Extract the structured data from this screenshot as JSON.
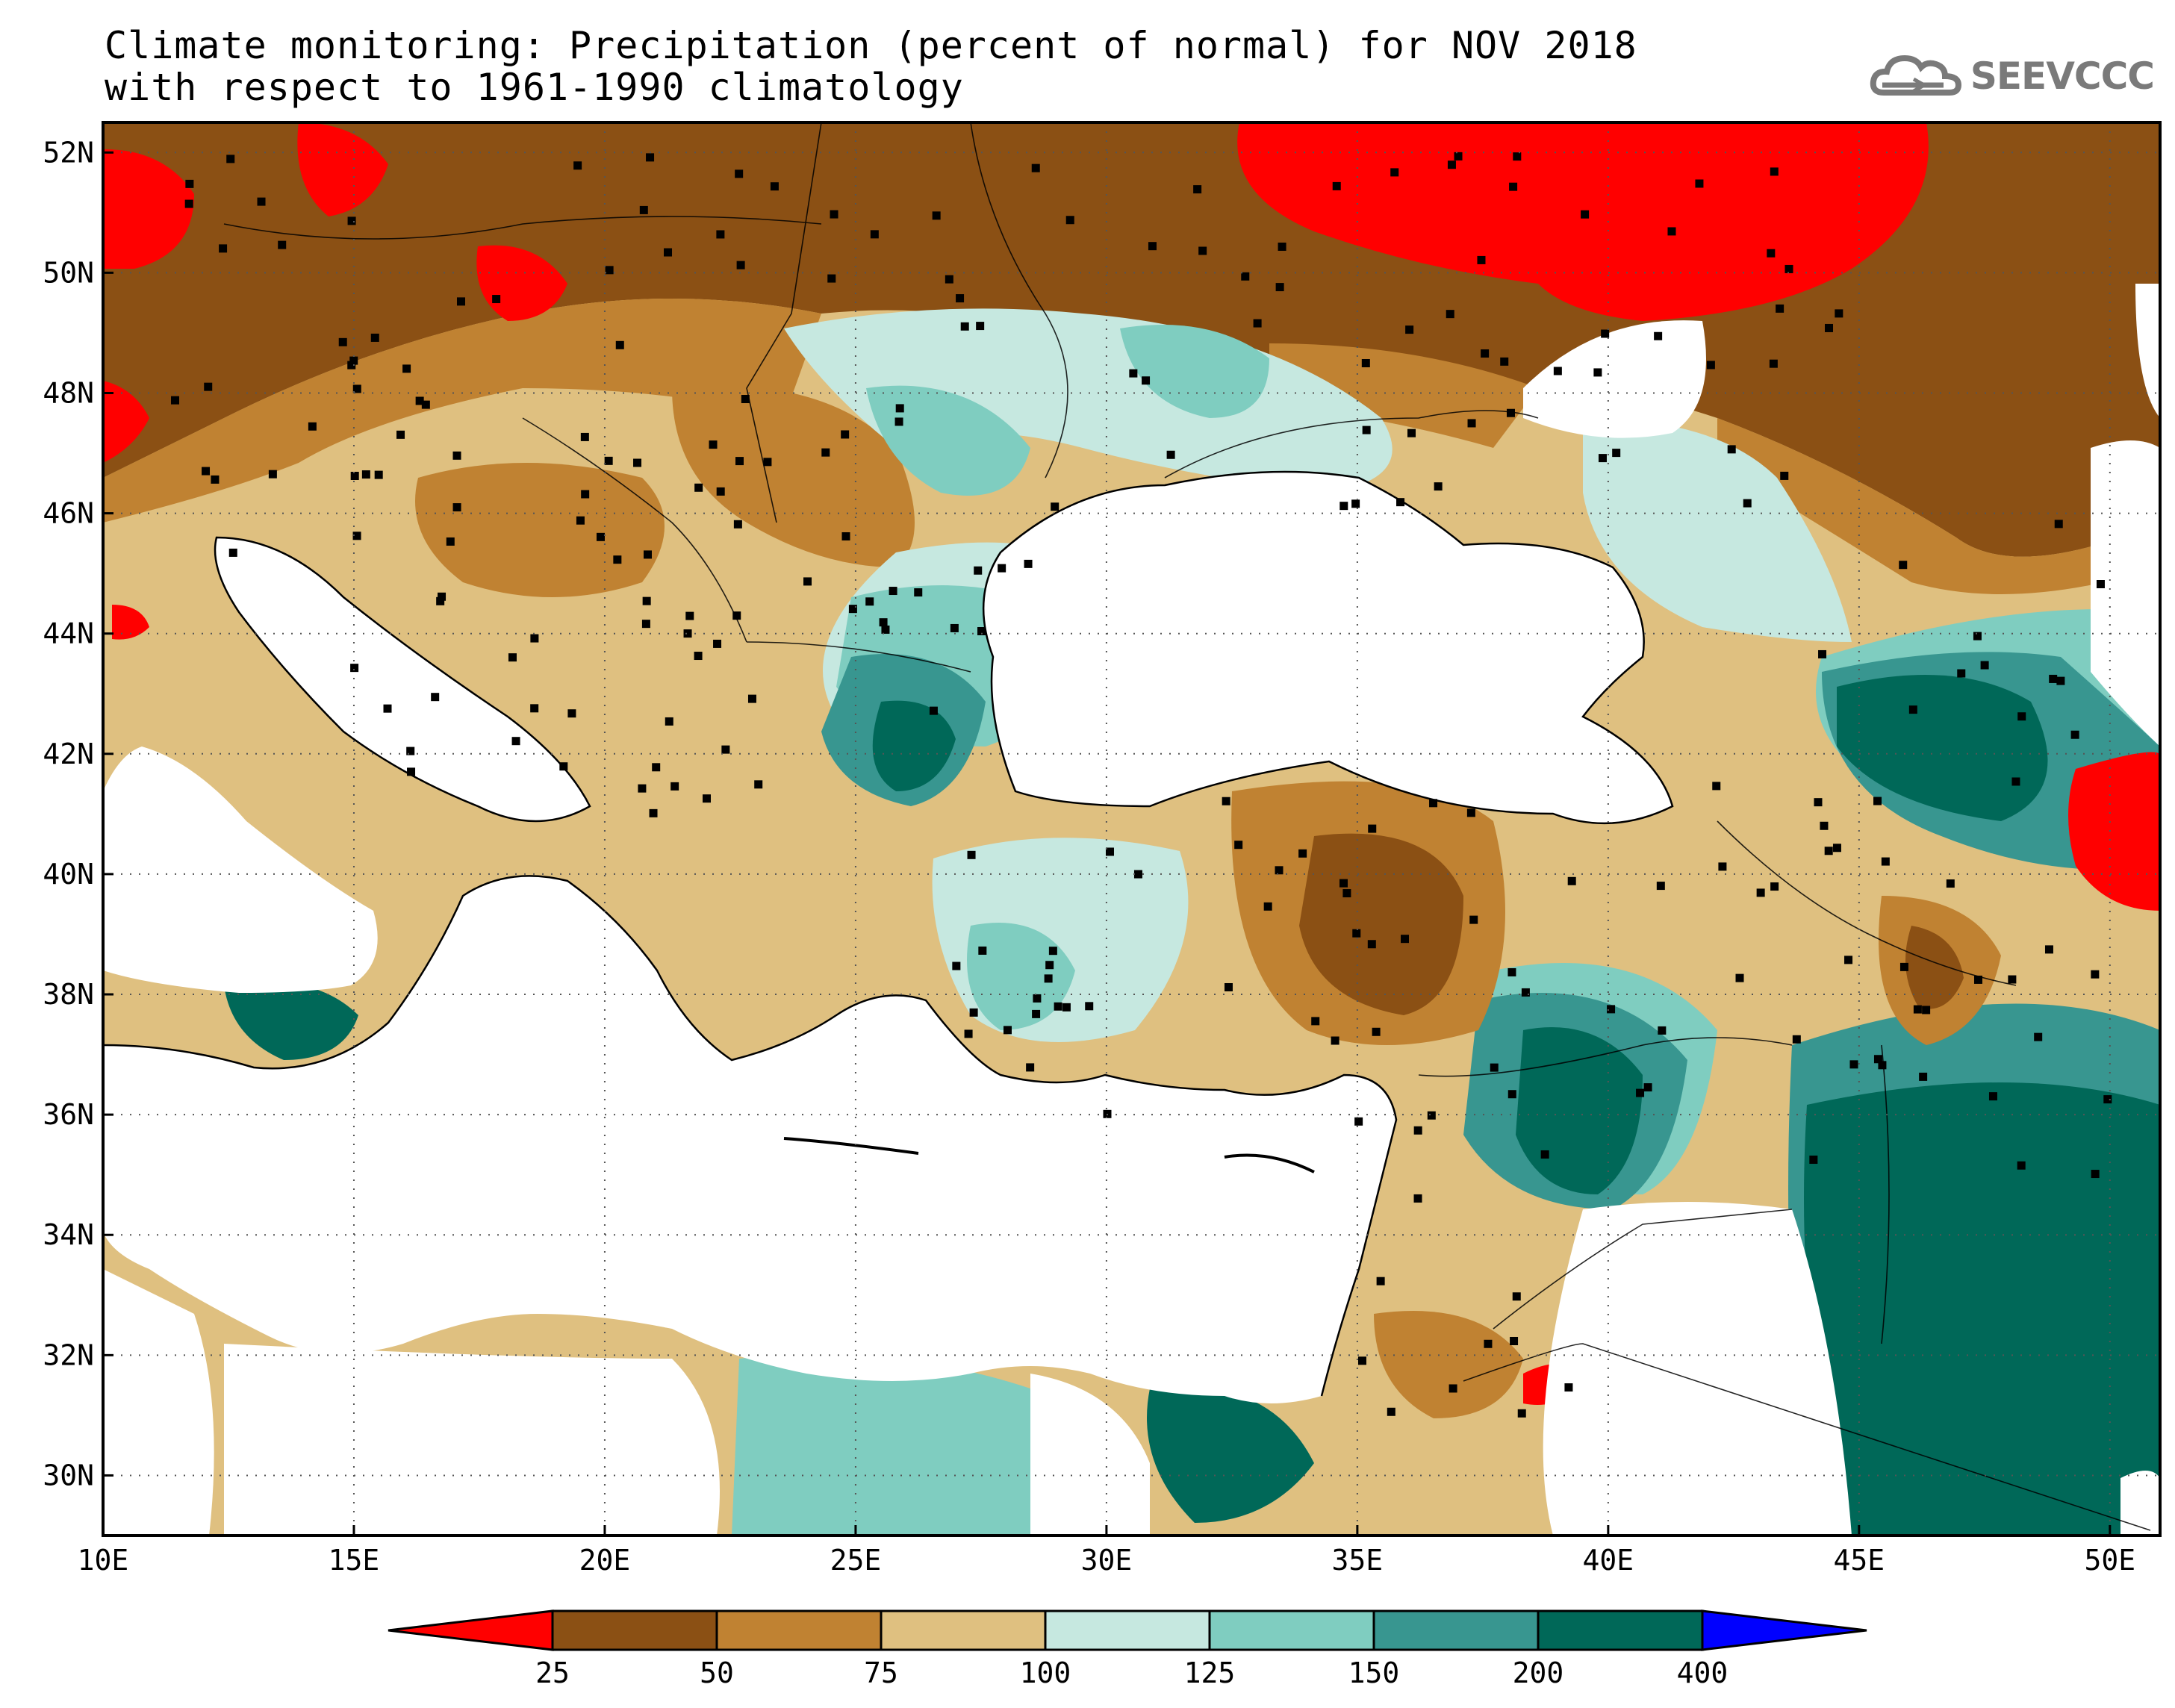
{
  "title": {
    "line1": "Climate monitoring: Precipitation (percent of normal) for NOV 2018",
    "line2": "with respect to 1961-1990 climatology"
  },
  "logo": {
    "icon": "cloud-icon",
    "text": "SEEVCCC",
    "color": "#7a7a7a"
  },
  "map": {
    "lon_range": [
      10,
      51
    ],
    "lat_range": [
      29,
      52.5
    ],
    "x_ticks": [
      "10E",
      "15E",
      "20E",
      "25E",
      "30E",
      "35E",
      "40E",
      "45E",
      "50E"
    ],
    "x_tick_values": [
      10,
      15,
      20,
      25,
      30,
      35,
      40,
      45,
      50
    ],
    "y_ticks": [
      "30N",
      "32N",
      "34N",
      "36N",
      "38N",
      "40N",
      "42N",
      "44N",
      "46N",
      "48N",
      "50N",
      "52N"
    ],
    "y_tick_values": [
      30,
      32,
      34,
      36,
      38,
      40,
      42,
      44,
      46,
      48,
      50,
      52
    ],
    "grid": "dotted",
    "colors": {
      "sea": "#ffffff",
      "coast": "#000000"
    }
  },
  "colorbar": {
    "labels": [
      "25",
      "50",
      "75",
      "100",
      "125",
      "150",
      "200",
      "400"
    ],
    "colors": [
      "#ff0000",
      "#8b5014",
      "#c08232",
      "#dfc080",
      "#c6e8e0",
      "#7fcdc0",
      "#389690",
      "#006858",
      "#0000ff"
    ],
    "extend": "both"
  }
}
